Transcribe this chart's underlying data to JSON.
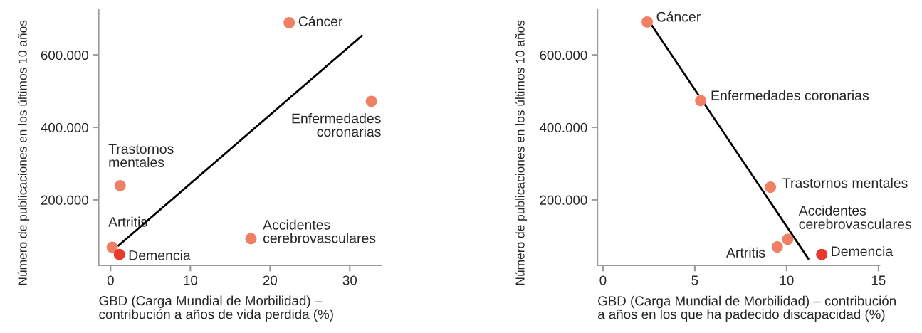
{
  "chart_data": [
    {
      "type": "scatter",
      "xlabel": "GBD (Carga Mundial de Morbilidad) –\ncontribución a años de vida perdida (%)",
      "ylabel": "Número de publicaciones en los últimos 10 años",
      "xlim": [
        -1.5,
        34
      ],
      "ylim": [
        19000,
        725000
      ],
      "xticks": [
        0,
        10,
        20,
        30
      ],
      "yticks": [
        {
          "value": 200000,
          "label": "200.000"
        },
        {
          "value": 400000,
          "label": "400.000"
        },
        {
          "value": 600000,
          "label": "600.000"
        }
      ],
      "series": [
        {
          "marker": "circle",
          "x": [
            22.4,
            32.7,
            1.2,
            0.2,
            1.1,
            17.6
          ],
          "values": [
            689000,
            472000,
            239000,
            69000,
            49000,
            93000
          ],
          "colors": [
            "#f08064",
            "#f08064",
            "#f08064",
            "#f08064",
            "#e8392d",
            "#f08064"
          ]
        },
        {
          "type": "line",
          "color": "#000000",
          "x": [
            0.9,
            31.6
          ],
          "values": [
            72000,
            655000
          ]
        }
      ],
      "annotations": [
        {
          "text": "Cáncer",
          "x": 22.4,
          "y": 689000
        },
        {
          "text": "Enfermedades\ncoronarias",
          "x": 32.7,
          "y": 472000
        },
        {
          "text": "Trastornos\nmentales",
          "x": 1.2,
          "y": 239000
        },
        {
          "text": "Artritis",
          "x": 0.2,
          "y": 69000
        },
        {
          "text": "Demencia",
          "x": 1.1,
          "y": 49000
        },
        {
          "text": "Accidentes\ncerebrovasculares",
          "x": 17.6,
          "y": 93000
        }
      ]
    },
    {
      "type": "scatter",
      "xlabel": "GBD (Carga Mundial de Morbilidad) – contribución\na años en los que ha padecido discapacidad (%)",
      "ylabel": "Número de publicaciones en los últimos 10 años",
      "xlim": [
        -0.3,
        15.06
      ],
      "ylim": [
        19000,
        725000
      ],
      "xticks": [
        0,
        5,
        10,
        15
      ],
      "yticks": [
        {
          "value": 200000,
          "label": "200.000"
        },
        {
          "value": 400000,
          "label": "400.000"
        },
        {
          "value": 600000,
          "label": "600.000"
        }
      ],
      "series": [
        {
          "marker": "circle",
          "x": [
            2.41,
            5.32,
            9.12,
            10.06,
            9.49,
            11.91
          ],
          "values": [
            691000,
            474000,
            235000,
            91000,
            70000,
            49000
          ],
          "colors": [
            "#f08064",
            "#f08064",
            "#f08064",
            "#f08064",
            "#f08064",
            "#e8392d"
          ]
        },
        {
          "type": "line",
          "color": "#000000",
          "x": [
            2.64,
            11.21
          ],
          "values": [
            683000,
            35000
          ]
        }
      ],
      "annotations": [
        {
          "text": "Cáncer",
          "x": 2.41,
          "y": 691000
        },
        {
          "text": "Enfermedades coronarias",
          "x": 5.32,
          "y": 474000
        },
        {
          "text": "Trastornos mentales",
          "x": 9.12,
          "y": 235000
        },
        {
          "text": "Accidentes\ncerebrovasculares",
          "x": 10.06,
          "y": 91000
        },
        {
          "text": "Artritis",
          "x": 9.49,
          "y": 70000
        },
        {
          "text": "Demencia",
          "x": 11.91,
          "y": 49000
        }
      ]
    }
  ]
}
